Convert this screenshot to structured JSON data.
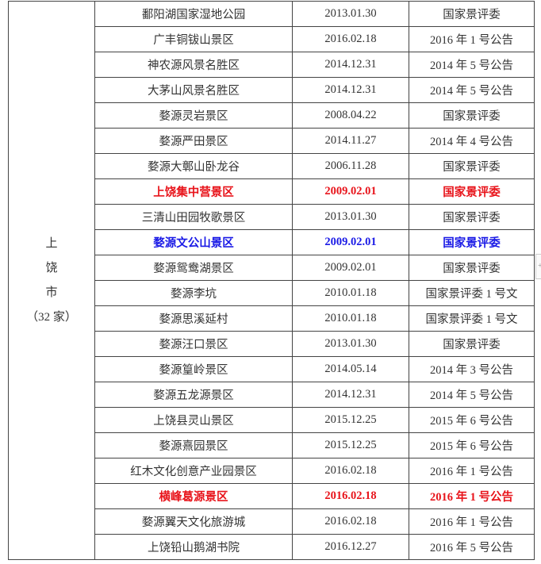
{
  "city": {
    "lines": [
      "上",
      "饶",
      "市",
      "（32 家）"
    ]
  },
  "colors": {
    "red": "#e8141b",
    "blue": "#1a1ae6",
    "text": "#333333"
  },
  "rows": [
    {
      "name": "鄱阳湖国家湿地公园",
      "date": "2013.01.30",
      "source": "国家景评委",
      "highlight": ""
    },
    {
      "name": "广丰铜钹山景区",
      "date": "2016.02.18",
      "source": "2016 年 1 号公告",
      "highlight": ""
    },
    {
      "name": "神农源风景名胜区",
      "date": "2014.12.31",
      "source": "2014 年 5 号公告",
      "highlight": ""
    },
    {
      "name": "大茅山风景名胜区",
      "date": "2014.12.31",
      "source": "2014 年 5 号公告",
      "highlight": ""
    },
    {
      "name": "婺源灵岩景区",
      "date": "2008.04.22",
      "source": "国家景评委",
      "highlight": ""
    },
    {
      "name": "婺源严田景区",
      "date": "2014.11.27",
      "source": "2014 年 4 号公告",
      "highlight": ""
    },
    {
      "name": "婺源大鄣山卧龙谷",
      "date": "2006.11.28",
      "source": "国家景评委",
      "highlight": ""
    },
    {
      "name": "上饶集中营景区",
      "date": "2009.02.01",
      "source": "国家景评委",
      "highlight": "red"
    },
    {
      "name": "三清山田园牧歌景区",
      "date": "2013.01.30",
      "source": "国家景评委",
      "highlight": ""
    },
    {
      "name": "婺源文公山景区",
      "date": "2009.02.01",
      "source": "国家景评委",
      "highlight": "blue"
    },
    {
      "name": "婺源鸳鸯湖景区",
      "date": "2009.02.01",
      "source": "国家景评委",
      "highlight": ""
    },
    {
      "name": "婺源李坑",
      "date": "2010.01.18",
      "source": "国家景评委 1 号文",
      "highlight": ""
    },
    {
      "name": "婺源思溪延村",
      "date": "2010.01.18",
      "source": "国家景评委 1 号文",
      "highlight": ""
    },
    {
      "name": "婺源汪口景区",
      "date": "2013.01.30",
      "source": "国家景评委",
      "highlight": ""
    },
    {
      "name": "婺源篁岭景区",
      "date": "2014.05.14",
      "source": "2014 年 3 号公告",
      "highlight": ""
    },
    {
      "name": "婺源五龙源景区",
      "date": "2014.12.31",
      "source": "2014 年 5 号公告",
      "highlight": ""
    },
    {
      "name": "上饶县灵山景区",
      "date": "2015.12.25",
      "source": "2015 年 6 号公告",
      "highlight": ""
    },
    {
      "name": "婺源熹园景区",
      "date": "2015.12.25",
      "source": "2015 年 6 号公告",
      "highlight": ""
    },
    {
      "name": "红木文化创意产业园景区",
      "date": "2016.02.18",
      "source": "2016 年 1 号公告",
      "highlight": ""
    },
    {
      "name": "横峰葛源景区",
      "date": "2016.02.18",
      "source": "2016 年 1 号公告",
      "highlight": "red"
    },
    {
      "name": "婺源翼天文化旅游城",
      "date": "2016.02.18",
      "source": "2016 年 1 号公告",
      "highlight": ""
    },
    {
      "name": "上饶铅山鹅湖书院",
      "date": "2016.12.27",
      "source": "2016 年 5 号公告",
      "highlight": ""
    }
  ]
}
